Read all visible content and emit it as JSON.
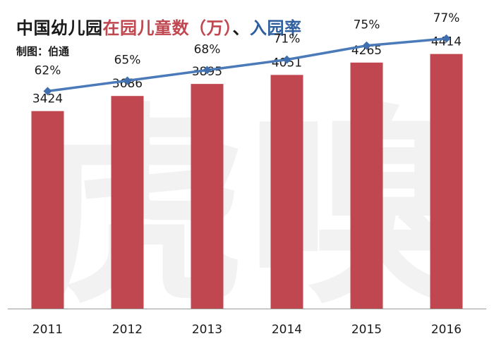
{
  "title": {
    "part1": "中国幼儿园",
    "part2": "在园儿童数（万）",
    "separator": "、",
    "part3": "入园率"
  },
  "credit": "制图：伯通",
  "watermark": "虎嗅",
  "colors": {
    "bar": "#c0474f",
    "line": "#4a7ab8",
    "marker": "#3f6fae",
    "title_red": "#c0474f",
    "title_blue": "#2f5f9e",
    "text": "#1a1a1a"
  },
  "chart_data": {
    "type": "bar+line",
    "title": "中国幼儿园在园儿童数（万）、入园率",
    "categories": [
      "2011",
      "2012",
      "2013",
      "2014",
      "2015",
      "2016"
    ],
    "series": [
      {
        "name": "在园儿童数（万）",
        "type": "bar",
        "values": [
          3424,
          3686,
          3895,
          4051,
          4265,
          4414
        ],
        "labels": [
          "3424",
          "3686",
          "3895",
          "4051",
          "4265",
          "4414"
        ]
      },
      {
        "name": "入园率",
        "type": "line",
        "values": [
          62,
          65,
          68,
          71,
          75,
          77
        ],
        "labels": [
          "62%",
          "65%",
          "68%",
          "71%",
          "75%",
          "77%"
        ]
      }
    ],
    "bar_ylim": [
      0,
      5350
    ],
    "line_ylim": [
      0,
      88
    ],
    "grid": false
  }
}
